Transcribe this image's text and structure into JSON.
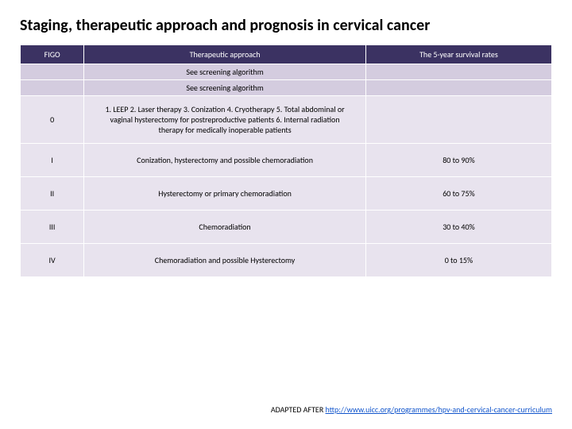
{
  "title": "Staging, therapeutic approach and prognosis in cervical cancer",
  "headers": {
    "figo": "FIGO",
    "approach": "Therapeutic approach",
    "survival": "The 5-year survival rates"
  },
  "subheaders": {
    "screening1": "See screening algorithm",
    "screening2": "See screening algorithm"
  },
  "rows": [
    {
      "stage": "0",
      "approach": "1. LEEP 2. Laser therapy 3. Conization 4. Cryotherapy  5. Total abdominal or vaginal hysterectomy for postreproductive patients            6. Internal radiation therapy for medically inoperable patients",
      "survival": ""
    },
    {
      "stage": "I",
      "approach": "Conization, hysterectomy and possible chemoradiation",
      "survival": "80 to 90%"
    },
    {
      "stage": "II",
      "approach": "Hysterectomy or primary chemoradiation",
      "survival": "60 to 75%"
    },
    {
      "stage": "III",
      "approach": "Chemoradiation",
      "survival": "30 to 40%"
    },
    {
      "stage": "IV",
      "approach": "Chemoradiation and possible Hysterectomy",
      "survival": "0 to 15%"
    }
  ],
  "source": {
    "prefix": "ADAPTED AFTER ",
    "link": "http://www.uicc.org/programmes/hpv-and-cervical-cancer-curriculum"
  },
  "colors": {
    "header_bg": "#3b3262",
    "sub_bg": "#d4ccdf",
    "row_bg": "#e8e3ee"
  }
}
